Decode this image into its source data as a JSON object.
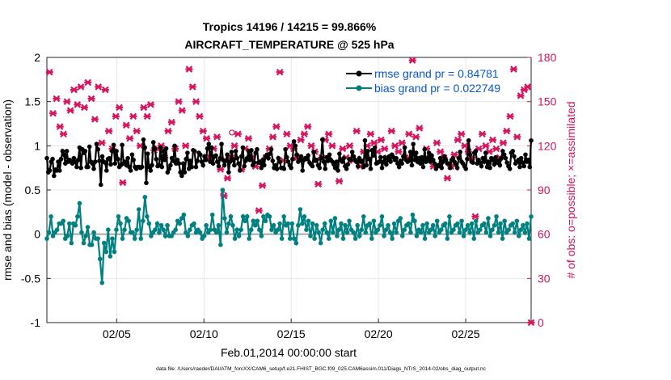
{
  "chart_data": {
    "type": "line",
    "title": "Tropics 14196 / 14215 = 99.866%",
    "subtitle": "AIRCRAFT_TEMPERATURE @ 525 hPa",
    "xlabel": "Feb.01,2014 00:00:00 start",
    "ylabel_left": "rmse and bias (model - observation)",
    "ylabel_right": "# of obs: o=possible; ×=assimilated",
    "footer": "data file: /Users/raeder/DAI/ATM_forcXX/CAM6_setup/f.e21.FHIST_BGC.f09_025.CAM6assim.011/Diags_NTrS_2014-02/obs_diag_output.nc",
    "x_ticks": [
      4,
      9,
      14,
      19,
      24
    ],
    "x_tick_labels": [
      "02/05",
      "02/10",
      "02/15",
      "02/20",
      "02/25"
    ],
    "xlim": [
      0,
      27.75
    ],
    "ylim_left": [
      -1,
      2
    ],
    "y_ticks_left": [
      "-1",
      "-0.5",
      "0",
      "0.5",
      "1",
      "1.5",
      "2"
    ],
    "ylim_right": [
      0,
      180
    ],
    "y_ticks_right": [
      "0",
      "30",
      "60",
      "90",
      "120",
      "150",
      "180"
    ],
    "grid": true,
    "legend": {
      "position": "top-right",
      "entries": [
        "rmse grand pr = 0.84781",
        "bias grand pr = 0.022749"
      ]
    },
    "zero_line": 0,
    "series": [
      {
        "name": "rmse grand pr = 0.84781",
        "color": "#000000",
        "axis": "left",
        "values": [
          0.86,
          0.7,
          0.72,
          0.82,
          0.85,
          0.66,
          0.73,
          0.72,
          0.82,
          0.72,
          0.85,
          0.94,
          0.9,
          0.8,
          0.94,
          0.82,
          0.84,
          0.82,
          0.8,
          0.86,
          0.82,
          0.76,
          0.84,
          0.98,
          0.75,
          0.96,
          0.92,
          0.94,
          0.76,
          0.76,
          0.99,
          0.82,
          0.8,
          0.74,
          0.82,
          1.02,
          0.96,
          0.83,
          0.56,
          0.88,
          0.82,
          0.81,
          0.72,
          0.85,
          0.86,
          0.79,
          0.94,
          1.01,
          0.8,
          0.94,
          0.85,
          0.76,
          0.78,
          1.01,
          0.8,
          0.82,
          0.78,
          0.86,
          0.76,
          0.72,
          0.9,
          0.84,
          0.76,
          0.74,
          0.76,
          0.76,
          0.75,
          0.76,
          1.07,
          0.98,
          0.58,
          0.91,
          0.76,
          0.72,
          0.78,
          1.04,
          0.97,
          0.85,
          0.77,
          0.78,
          0.98,
          0.76,
          0.94,
          0.84,
          0.97,
          0.7,
          0.74,
          0.78,
          0.86,
          0.83,
          1.0,
          0.8,
          0.84,
          0.8,
          0.7,
          0.66,
          0.8,
          0.7,
          0.85,
          0.92,
          0.74,
          0.83,
          0.76,
          0.95,
          0.94,
          0.76,
          0.83,
          0.92,
          0.9,
          0.82,
          0.78,
          0.88,
          0.84,
          0.97,
          1.02,
          0.82,
          0.98,
          0.8,
          0.88,
          0.89,
          0.82,
          0.77,
          0.86,
          1.02,
          0.84,
          0.78,
          0.83,
          0.9,
          0.7,
          0.82,
          0.93,
          0.84,
          0.78,
          0.94,
          0.86,
          0.8,
          0.72,
          0.88,
          0.98,
          0.77,
          0.83,
          0.86,
          0.94,
          0.84,
          0.95,
          0.78,
          0.81,
          0.92,
          0.96,
          0.81,
          0.82,
          0.75,
          0.84,
          0.78,
          0.88,
          0.9,
          0.86,
          0.91,
          0.96,
          0.83,
          0.75,
          0.78,
          0.74,
          0.86,
          0.82,
          0.75,
          0.75,
          0.74,
          0.96,
          0.87,
          0.82,
          0.78,
          0.75,
          0.85,
          1.05,
          1.0,
          0.9,
          0.82,
          0.84,
          0.88,
          0.72,
          0.84,
          0.86,
          0.85,
          0.89,
          0.81,
          0.79,
          0.77,
          0.93,
          0.83,
          0.84,
          0.78,
          0.75,
          0.86,
          1.07,
          0.82,
          0.74,
          0.87,
          0.83,
          0.9,
          0.84,
          0.82,
          0.79,
          0.75,
          0.82,
          0.72,
          0.91,
          0.84,
          0.82,
          0.86,
          0.77,
          0.74,
          0.79,
          0.85,
          0.84,
          0.93,
          0.88,
          0.84,
          0.82,
          0.77,
          0.86,
          0.82,
          0.83,
          0.76,
          1.06,
          0.78,
          0.94,
          0.85,
          0.74,
          0.95,
          0.89,
          0.98,
          0.8,
          0.81,
          0.82,
          0.87,
          0.75,
          0.82,
          0.87,
          0.79,
          0.84,
          0.88,
          0.82,
          0.9,
          0.87,
          0.84,
          0.86,
          0.8,
          0.76,
          0.83,
          0.8,
          0.88,
          0.98,
          0.84,
          0.82,
          0.83,
          0.93,
          0.78,
          1.02,
          0.84,
          0.92,
          0.82,
          0.86,
          0.8,
          0.87,
          0.76,
          0.96,
          0.82,
          0.86,
          0.92,
          0.82,
          0.89,
          0.84,
          0.8,
          0.74,
          0.78,
          0.77,
          0.86,
          0.75,
          0.82,
          0.88,
          0.84,
          0.8,
          0.8,
          0.75,
          0.84,
          0.86,
          0.82,
          0.79,
          0.75,
          0.86,
          0.93,
          0.82,
          0.8,
          0.77,
          0.74,
          0.85,
          1.06,
          0.9,
          0.82,
          0.81,
          0.92,
          0.94,
          0.8,
          0.84,
          0.81,
          0.77,
          0.86,
          0.82,
          0.92,
          0.76,
          0.82,
          0.75,
          0.86,
          0.84,
          0.79,
          0.87,
          0.81,
          0.83,
          0.78,
          0.86,
          0.94,
          0.9,
          0.86,
          0.81,
          0.77,
          0.74,
          0.92,
          0.94,
          0.88,
          0.8,
          0.82,
          0.84,
          0.76,
          0.86,
          0.81,
          0.77,
          0.9,
          0.82,
          0.84,
          0.76,
          1.06
        ]
      },
      {
        "name": "bias grand pr = 0.022749",
        "color": "#008080",
        "axis": "left",
        "values": [
          -0.05,
          0.02,
          0.2,
          -0.02,
          0.02,
          0.05,
          0.12,
          0.12,
          0.15,
          -0.05,
          -0.02,
          0.12,
          -0.1,
          0.12,
          0.1,
          0.2,
          0.35,
          0.02,
          -0.1,
          -0.02,
          0.08,
          -0.12,
          -0.12,
          0.02,
          -0.05,
          -0.05,
          -0.28,
          -0.55,
          -0.1,
          -0.2,
          0.05,
          -0.25,
          -0.05,
          -0.2,
          0.05,
          0.2,
          0.12,
          -0.05,
          0.05,
          0.18,
          0.15,
          0.02,
          0.02,
          -0.05,
          0.05,
          0.28,
          -0.05,
          0.15,
          0.42,
          0.2,
          0.12,
          -0.02,
          0.02,
          0.05,
          0.12,
          0.02,
          0.1,
          0.05,
          -0.02,
          0.1,
          -0.02,
          -0.02,
          0.02,
          0.05,
          0.15,
          0.12,
          0.18,
          0.22,
          0.02,
          -0.02,
          0.05,
          0.1,
          0.12,
          0.02,
          0.05,
          0.02,
          -0.05,
          -0.02,
          0.1,
          0.02,
          0.05,
          0.22,
          0.05,
          0.02,
          0.1,
          -0.12,
          0.5,
          0.18,
          0.02,
          0.12,
          0.2,
          0.1,
          -0.05,
          0.05,
          -0.02,
          0.05,
          0.2,
          0.15,
          0.2,
          -0.05,
          0.05,
          0.15,
          0.1,
          0.15,
          0.05,
          -0.02,
          0.2,
          0.15,
          0.22,
          0.2,
          0.05,
          0.1,
          0.02,
          0.05,
          0.12,
          -0.05,
          0.2,
          0.1,
          0.12,
          -0.05,
          0.12,
          -0.05,
          -0.1,
          0.1,
          0.28,
          0.12,
          0.2,
          0.05,
          0.15,
          -0.02,
          0.12,
          -0.05,
          0.1,
          0.02,
          -0.1,
          0.05,
          0.12,
          0.02,
          -0.05,
          0.15,
          0.02,
          0.18,
          -0.02,
          0.05,
          0.12,
          -0.05,
          0.1,
          0.02,
          0.15,
          0.05,
          0.02,
          -0.05,
          0.1,
          -0.02,
          0.05,
          0.2,
          0.02,
          0.1,
          0.12,
          -0.05,
          0.15,
          0.02,
          0.05,
          0.1,
          0.2,
          -0.02,
          0.05,
          0.1,
          0.02,
          -0.05,
          0.12,
          0.02,
          0.15,
          0.18,
          -0.02,
          0.05,
          0.1,
          0.12,
          0.02,
          0.22,
          0.15,
          -0.02,
          0.05,
          0.02,
          0.1,
          -0.05,
          0.12,
          0.02,
          0.05,
          0.1,
          -0.02,
          0.15,
          0.02,
          0.05,
          0.1,
          0.12,
          -0.05,
          0.2,
          0.02,
          0.05,
          0.1,
          0.12,
          0.02,
          0.15,
          -0.02,
          0.05,
          0.1,
          0.02,
          0.12,
          -0.05,
          0.15,
          0.02,
          0.05,
          0.1,
          0.12,
          0.02,
          0.18,
          -0.02,
          0.05,
          0.1,
          0.2,
          0.02,
          0.12,
          -0.05,
          0.15,
          0.02,
          0.05,
          0.1,
          0.12,
          0.02,
          0.15,
          -0.02,
          0.05,
          0.1,
          0.02,
          0.12,
          -0.05,
          0.2
        ]
      }
    ],
    "obs_possible": [
      {
        "x": 10.6,
        "y": 129
      },
      {
        "x": 10.1,
        "y": 87
      }
    ],
    "obs_assimilated": [
      [
        0.15,
        170
      ],
      [
        0.35,
        142
      ],
      [
        0.55,
        152
      ],
      [
        0.75,
        133
      ],
      [
        0.95,
        128
      ],
      [
        1.15,
        150
      ],
      [
        1.35,
        144
      ],
      [
        1.55,
        158
      ],
      [
        1.75,
        148
      ],
      [
        1.95,
        160
      ],
      [
        2.15,
        146
      ],
      [
        2.35,
        163
      ],
      [
        2.55,
        152
      ],
      [
        2.75,
        138
      ],
      [
        2.95,
        160
      ],
      [
        3.15,
        122
      ],
      [
        3.35,
        158
      ],
      [
        3.55,
        130
      ],
      [
        3.75,
        118
      ],
      [
        3.95,
        140
      ],
      [
        4.15,
        146
      ],
      [
        4.35,
        95
      ],
      [
        4.55,
        134
      ],
      [
        4.75,
        125
      ],
      [
        4.95,
        140
      ],
      [
        5.15,
        130
      ],
      [
        5.35,
        120
      ],
      [
        5.55,
        146
      ],
      [
        5.75,
        140
      ],
      [
        5.95,
        148
      ],
      [
        6.15,
        117
      ],
      [
        6.35,
        118
      ],
      [
        6.55,
        120
      ],
      [
        6.75,
        112
      ],
      [
        6.95,
        130
      ],
      [
        7.15,
        136
      ],
      [
        7.35,
        118
      ],
      [
        7.55,
        150
      ],
      [
        7.75,
        144
      ],
      [
        7.95,
        120
      ],
      [
        8.15,
        172
      ],
      [
        8.35,
        160
      ],
      [
        8.55,
        150
      ],
      [
        8.75,
        140
      ],
      [
        8.95,
        130
      ],
      [
        9.15,
        125
      ],
      [
        9.35,
        112
      ],
      [
        9.55,
        118
      ],
      [
        9.75,
        126
      ],
      [
        9.95,
        104
      ],
      [
        10.15,
        86
      ],
      [
        10.35,
        98
      ],
      [
        10.55,
        112
      ],
      [
        10.75,
        120
      ],
      [
        10.95,
        128
      ],
      [
        11.15,
        104
      ],
      [
        11.35,
        118
      ],
      [
        11.55,
        125
      ],
      [
        11.75,
        112
      ],
      [
        11.95,
        106
      ],
      [
        12.15,
        76
      ],
      [
        12.35,
        93
      ],
      [
        12.55,
        112
      ],
      [
        12.75,
        118
      ],
      [
        12.95,
        126
      ],
      [
        13.15,
        133
      ],
      [
        13.35,
        170
      ],
      [
        13.55,
        110
      ],
      [
        13.75,
        128
      ],
      [
        13.95,
        120
      ],
      [
        14.15,
        118
      ],
      [
        14.35,
        112
      ],
      [
        14.55,
        124
      ],
      [
        14.75,
        128
      ],
      [
        14.95,
        133
      ],
      [
        15.15,
        120
      ],
      [
        15.35,
        116
      ],
      [
        15.55,
        94
      ],
      [
        15.75,
        112
      ],
      [
        15.95,
        124
      ],
      [
        16.15,
        128
      ],
      [
        16.35,
        120
      ],
      [
        16.55,
        108
      ],
      [
        16.75,
        96
      ],
      [
        16.95,
        118
      ],
      [
        17.15,
        112
      ],
      [
        17.35,
        120
      ],
      [
        17.55,
        110
      ],
      [
        17.75,
        130
      ],
      [
        17.95,
        106
      ],
      [
        18.15,
        116
      ],
      [
        18.35,
        120
      ],
      [
        18.55,
        128
      ],
      [
        18.75,
        122
      ],
      [
        18.95,
        116
      ],
      [
        19.15,
        124
      ],
      [
        19.35,
        118
      ],
      [
        19.55,
        110
      ],
      [
        19.75,
        130
      ],
      [
        19.95,
        120
      ],
      [
        20.15,
        116
      ],
      [
        20.35,
        122
      ],
      [
        20.55,
        112
      ],
      [
        20.75,
        128
      ],
      [
        20.95,
        178
      ],
      [
        21.15,
        126
      ],
      [
        21.35,
        132
      ],
      [
        21.55,
        110
      ],
      [
        21.75,
        118
      ],
      [
        21.95,
        112
      ],
      [
        22.15,
        106
      ],
      [
        22.35,
        122
      ],
      [
        22.55,
        116
      ],
      [
        22.75,
        112
      ],
      [
        22.95,
        98
      ],
      [
        23.15,
        106
      ],
      [
        23.35,
        114
      ],
      [
        23.55,
        124
      ],
      [
        23.75,
        128
      ],
      [
        23.95,
        120
      ],
      [
        24.15,
        116
      ],
      [
        24.35,
        112
      ],
      [
        24.55,
        72
      ],
      [
        24.75,
        118
      ],
      [
        24.95,
        128
      ],
      [
        25.15,
        120
      ],
      [
        25.35,
        116
      ],
      [
        25.55,
        124
      ],
      [
        25.75,
        118
      ],
      [
        25.95,
        112
      ],
      [
        26.15,
        122
      ],
      [
        26.35,
        130
      ],
      [
        26.55,
        140
      ],
      [
        26.75,
        172
      ],
      [
        26.95,
        126
      ],
      [
        27.15,
        154
      ],
      [
        27.35,
        158
      ],
      [
        27.55,
        160
      ],
      [
        27.75,
        0
      ]
    ]
  }
}
